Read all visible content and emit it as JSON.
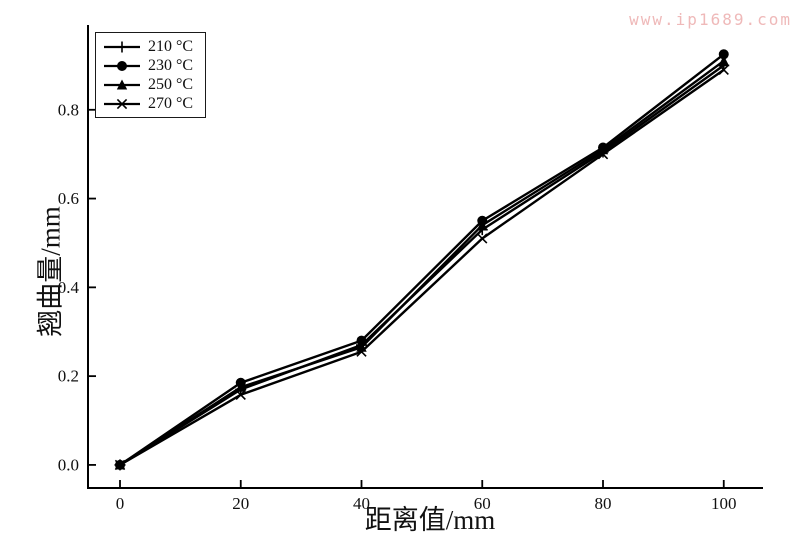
{
  "watermark": "www.ip1689.com",
  "colors": {
    "line": "#000000",
    "text": "#111111",
    "watermark": "#efb9b9"
  },
  "chart_data": {
    "type": "line",
    "title": "",
    "xlabel": "距离值/mm",
    "ylabel": "翘曲量/mm",
    "x": [
      0,
      20,
      40,
      60,
      80,
      100
    ],
    "xticks": [
      0,
      20,
      40,
      60,
      80,
      100
    ],
    "yticks": [
      0.0,
      0.2,
      0.4,
      0.6,
      0.8
    ],
    "xlim": [
      -5.3,
      106.5
    ],
    "ylim": [
      -0.052,
      0.991
    ],
    "grid": false,
    "legend_position": "top-left",
    "series": [
      {
        "name": "210 °C",
        "marker": "plus",
        "values": [
          0.0,
          0.17,
          0.27,
          0.53,
          0.705,
          0.9
        ]
      },
      {
        "name": "230 °C",
        "marker": "circle",
        "values": [
          0.0,
          0.185,
          0.28,
          0.55,
          0.715,
          0.925
        ]
      },
      {
        "name": "250 °C",
        "marker": "triangle",
        "values": [
          0.0,
          0.175,
          0.265,
          0.54,
          0.71,
          0.91
        ]
      },
      {
        "name": "270 °C",
        "marker": "x",
        "values": [
          0.0,
          0.158,
          0.255,
          0.51,
          0.7,
          0.89
        ]
      }
    ]
  }
}
